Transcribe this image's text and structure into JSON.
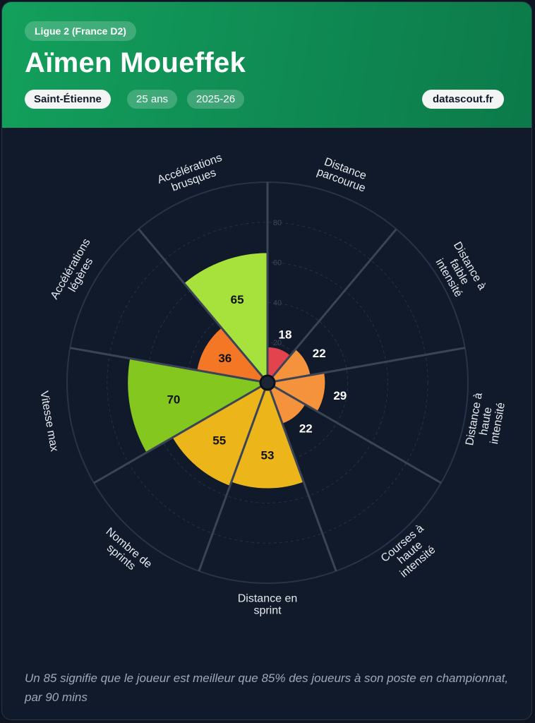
{
  "header": {
    "league": "Ligue 2 (France D2)",
    "player_name": "Aïmen Moueffek",
    "club": "Saint-Étienne",
    "age": "25 ans",
    "season": "2025-26",
    "brand": "datascout.fr"
  },
  "chart_data": {
    "type": "polar-area",
    "title": "",
    "rlim": [
      0,
      100
    ],
    "r_ticks": [
      20,
      40,
      60,
      80
    ],
    "grid": true,
    "categories": [
      "Distance parcourue",
      "Distance à faible intensité",
      "Distance à haute intensité",
      "Courses à haute intensité",
      "Distance en sprint",
      "Nombre de sprints",
      "Vitesse max",
      "Accélérations légères",
      "Accélérations brusques"
    ],
    "values": [
      18,
      22,
      29,
      22,
      53,
      55,
      70,
      36,
      65
    ],
    "colors": [
      "#e2434d",
      "#f5923c",
      "#f5923c",
      "#f5923c",
      "#ecb51a",
      "#ecb51a",
      "#84c81f",
      "#f47726",
      "#a7e23c"
    ]
  },
  "footnote": "Un 85 signifie que le joueur est meilleur que 85% des joueurs à son poste en championnat, par 90 mins"
}
